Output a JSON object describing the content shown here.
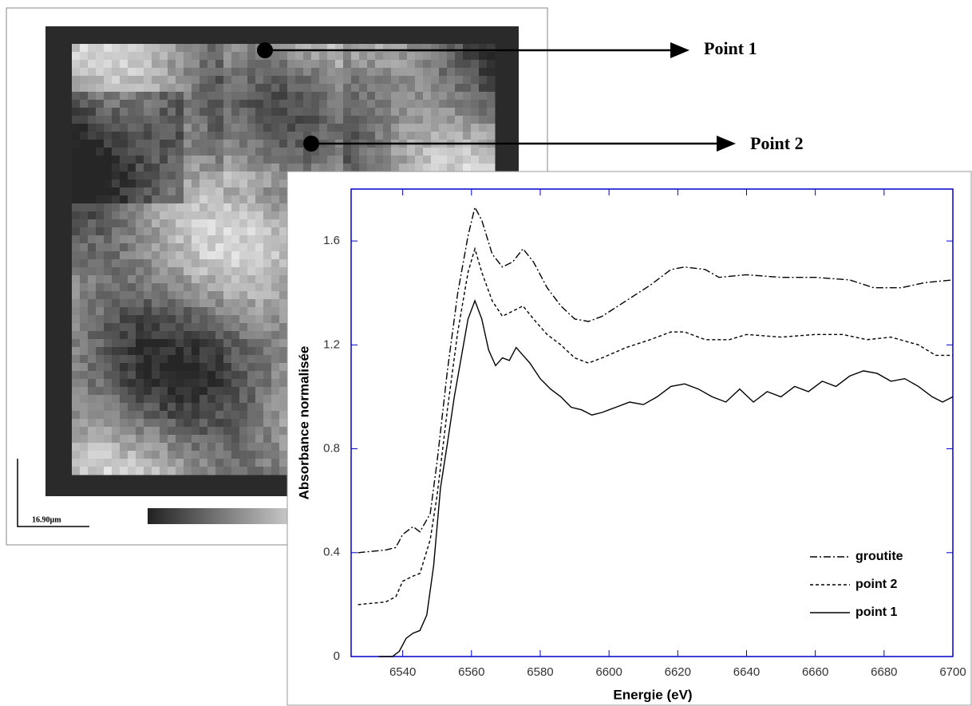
{
  "map": {
    "scale_bar": "16.90µm",
    "points": [
      "Point 1",
      "Point 2"
    ]
  },
  "chart_data": {
    "type": "line",
    "xlabel": "Energie (eV)",
    "ylabel": "Absorbance normalisée",
    "xlim": [
      6525,
      6700
    ],
    "xticks": [
      6540,
      6560,
      6580,
      6600,
      6620,
      6640,
      6660,
      6680,
      6700
    ],
    "ylim": [
      0,
      1.8
    ],
    "yticks": [
      0,
      0.4,
      0.8,
      1.2,
      1.6
    ],
    "legend": "lower right",
    "axis_color": "#0000cc",
    "series": [
      {
        "name": "groutite",
        "color": "#000000",
        "dash": "dashdot",
        "x": [
          6527,
          6535,
          6538,
          6540,
          6543,
          6545,
          6548,
          6550,
          6553,
          6556,
          6559,
          6561,
          6563,
          6566,
          6569,
          6572,
          6575,
          6578,
          6582,
          6586,
          6590,
          6594,
          6598,
          6605,
          6612,
          6618,
          6622,
          6628,
          6632,
          6640,
          6650,
          6660,
          6670,
          6677,
          6685,
          6692,
          6700
        ],
        "values": [
          0.4,
          0.41,
          0.42,
          0.47,
          0.5,
          0.48,
          0.55,
          0.75,
          1.1,
          1.4,
          1.62,
          1.73,
          1.68,
          1.55,
          1.5,
          1.52,
          1.57,
          1.52,
          1.42,
          1.35,
          1.3,
          1.29,
          1.31,
          1.37,
          1.43,
          1.49,
          1.5,
          1.49,
          1.46,
          1.47,
          1.46,
          1.46,
          1.45,
          1.42,
          1.42,
          1.44,
          1.45
        ]
      },
      {
        "name": "point 2",
        "color": "#000000",
        "dash": "dashed",
        "x": [
          6527,
          6535,
          6538,
          6540,
          6543,
          6545,
          6548,
          6550,
          6553,
          6556,
          6559,
          6561,
          6563,
          6566,
          6569,
          6572,
          6575,
          6578,
          6582,
          6586,
          6590,
          6594,
          6598,
          6605,
          6612,
          6618,
          6622,
          6628,
          6635,
          6640,
          6650,
          6660,
          6668,
          6675,
          6682,
          6690,
          6695,
          6700
        ],
        "values": [
          0.2,
          0.21,
          0.23,
          0.29,
          0.31,
          0.32,
          0.45,
          0.62,
          0.95,
          1.25,
          1.48,
          1.57,
          1.48,
          1.37,
          1.31,
          1.33,
          1.35,
          1.3,
          1.24,
          1.2,
          1.15,
          1.13,
          1.15,
          1.19,
          1.22,
          1.25,
          1.25,
          1.22,
          1.22,
          1.24,
          1.23,
          1.24,
          1.24,
          1.22,
          1.23,
          1.2,
          1.16,
          1.16
        ]
      },
      {
        "name": "point 1",
        "color": "#000000",
        "dash": "solid",
        "x": [
          6533,
          6537,
          6539,
          6541,
          6543,
          6545,
          6547,
          6549,
          6551,
          6553,
          6555,
          6557,
          6559,
          6561,
          6563,
          6565,
          6567,
          6569,
          6571,
          6573,
          6575,
          6577,
          6580,
          6583,
          6586,
          6589,
          6592,
          6595,
          6598,
          6602,
          6606,
          6610,
          6614,
          6618,
          6622,
          6626,
          6630,
          6634,
          6638,
          6642,
          6646,
          6650,
          6654,
          6658,
          6662,
          6666,
          6670,
          6674,
          6678,
          6682,
          6686,
          6690,
          6694,
          6697,
          6700
        ],
        "values": [
          0,
          0,
          0.02,
          0.07,
          0.09,
          0.1,
          0.16,
          0.35,
          0.65,
          0.82,
          1.0,
          1.15,
          1.3,
          1.37,
          1.3,
          1.18,
          1.12,
          1.15,
          1.14,
          1.19,
          1.16,
          1.13,
          1.07,
          1.03,
          1.0,
          0.96,
          0.95,
          0.93,
          0.94,
          0.96,
          0.98,
          0.97,
          1.0,
          1.04,
          1.05,
          1.03,
          1.0,
          0.98,
          1.03,
          0.98,
          1.02,
          1.0,
          1.04,
          1.02,
          1.06,
          1.04,
          1.08,
          1.1,
          1.09,
          1.06,
          1.07,
          1.04,
          1.0,
          0.98,
          1.0
        ]
      }
    ]
  }
}
